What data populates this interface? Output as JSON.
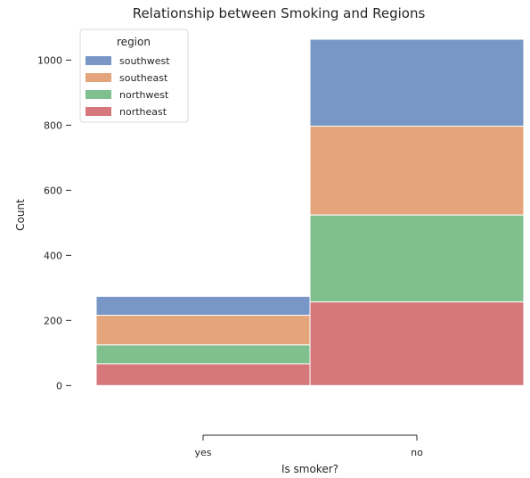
{
  "chart_data": {
    "type": "bar",
    "stacked": true,
    "title": "Relationship between Smoking and Regions",
    "xlabel": "Is smoker?",
    "ylabel": "Count",
    "categories": [
      "yes",
      "no"
    ],
    "ylim": [
      -95,
      1075
    ],
    "yticks": [
      0,
      200,
      400,
      600,
      800,
      1000
    ],
    "grid": false,
    "legend": {
      "title": "region",
      "placement": "top-left"
    },
    "series": [
      {
        "name": "northeast",
        "color": "#d5777b",
        "values": [
          67,
          257
        ]
      },
      {
        "name": "northwest",
        "color": "#80bf8e",
        "values": [
          58,
          267
        ]
      },
      {
        "name": "southeast",
        "color": "#e4a47c",
        "values": [
          91,
          273
        ]
      },
      {
        "name": "southwest",
        "color": "#7997c6",
        "values": [
          58,
          267
        ]
      }
    ],
    "legend_order": [
      "southwest",
      "southeast",
      "northwest",
      "northeast"
    ]
  }
}
